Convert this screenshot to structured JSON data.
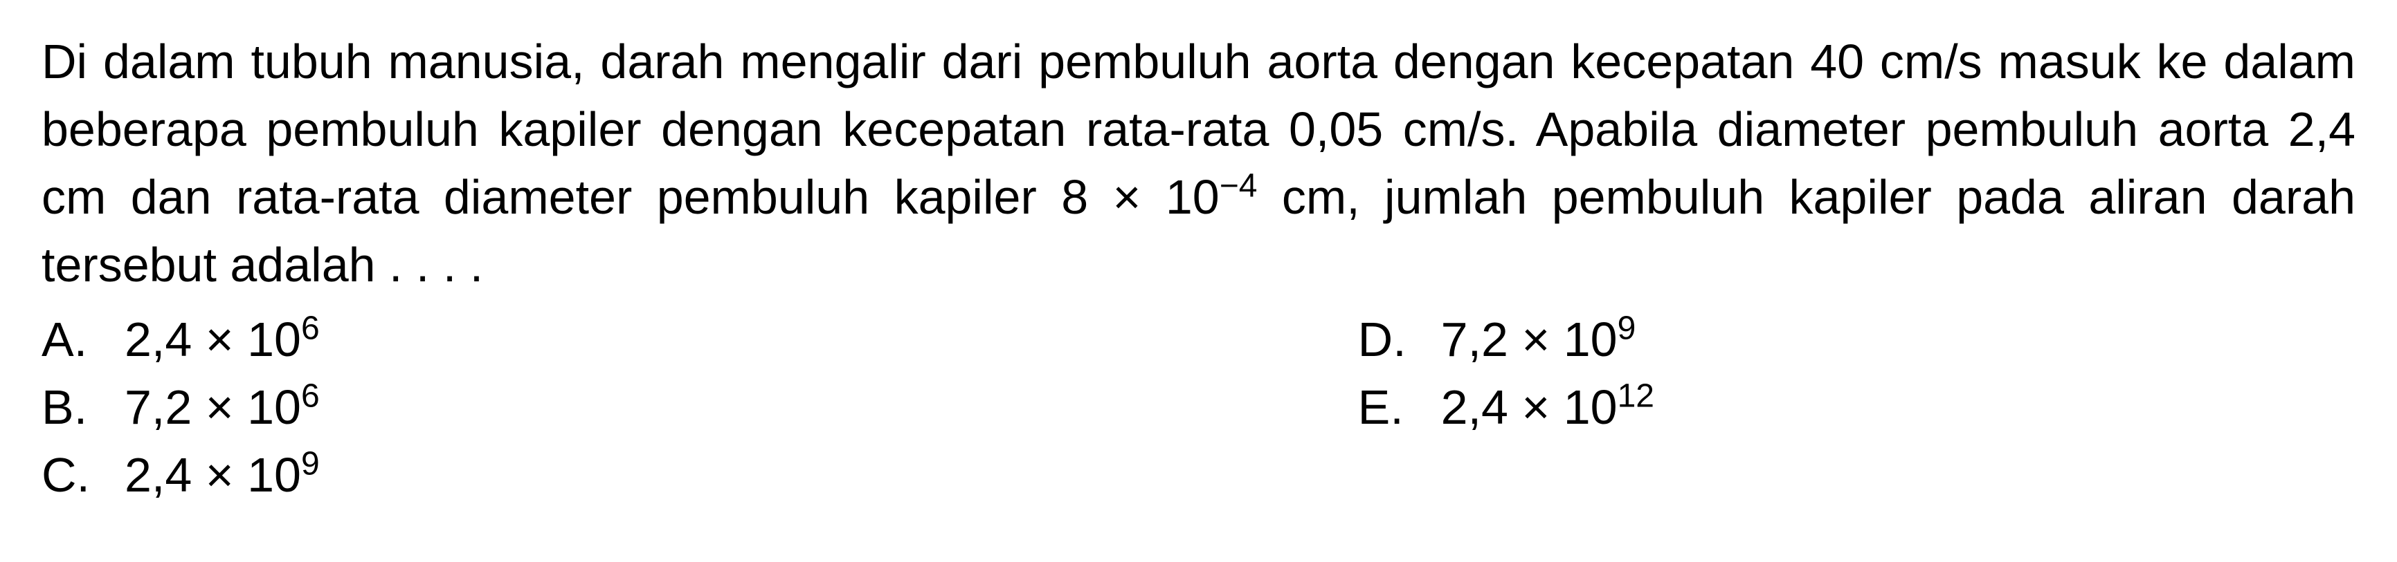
{
  "question": {
    "text_parts": [
      "Di dalam tubuh manusia, darah mengalir dari pembuluh aorta dengan kecepatan 40 cm/s masuk ke dalam beberapa pembuluh kapiler dengan kecepatan rata-rata 0,05 cm/s. Apabila diameter pembuluh aorta 2,4 cm dan rata-rata diameter pembuluh kapiler 8 × 10",
      "−4",
      " cm, jumlah pembuluh kapiler pada aliran darah tersebut adalah . . . ."
    ]
  },
  "options": {
    "left": [
      {
        "letter": "A.",
        "base": "2,4 × 10",
        "exp": "6"
      },
      {
        "letter": "B.",
        "base": "7,2 × 10",
        "exp": "6"
      },
      {
        "letter": "C.",
        "base": "2,4 × 10",
        "exp": "9"
      }
    ],
    "right": [
      {
        "letter": "D.",
        "base": "7,2 × 10",
        "exp": "9"
      },
      {
        "letter": "E.",
        "base": "2,4 × 10",
        "exp": "12"
      }
    ]
  },
  "styling": {
    "background_color": "#ffffff",
    "text_color": "#000000",
    "font_size_main": 70,
    "font_size_sup": 48,
    "line_height": 1.4,
    "font_family": "Arial, Helvetica, sans-serif"
  }
}
